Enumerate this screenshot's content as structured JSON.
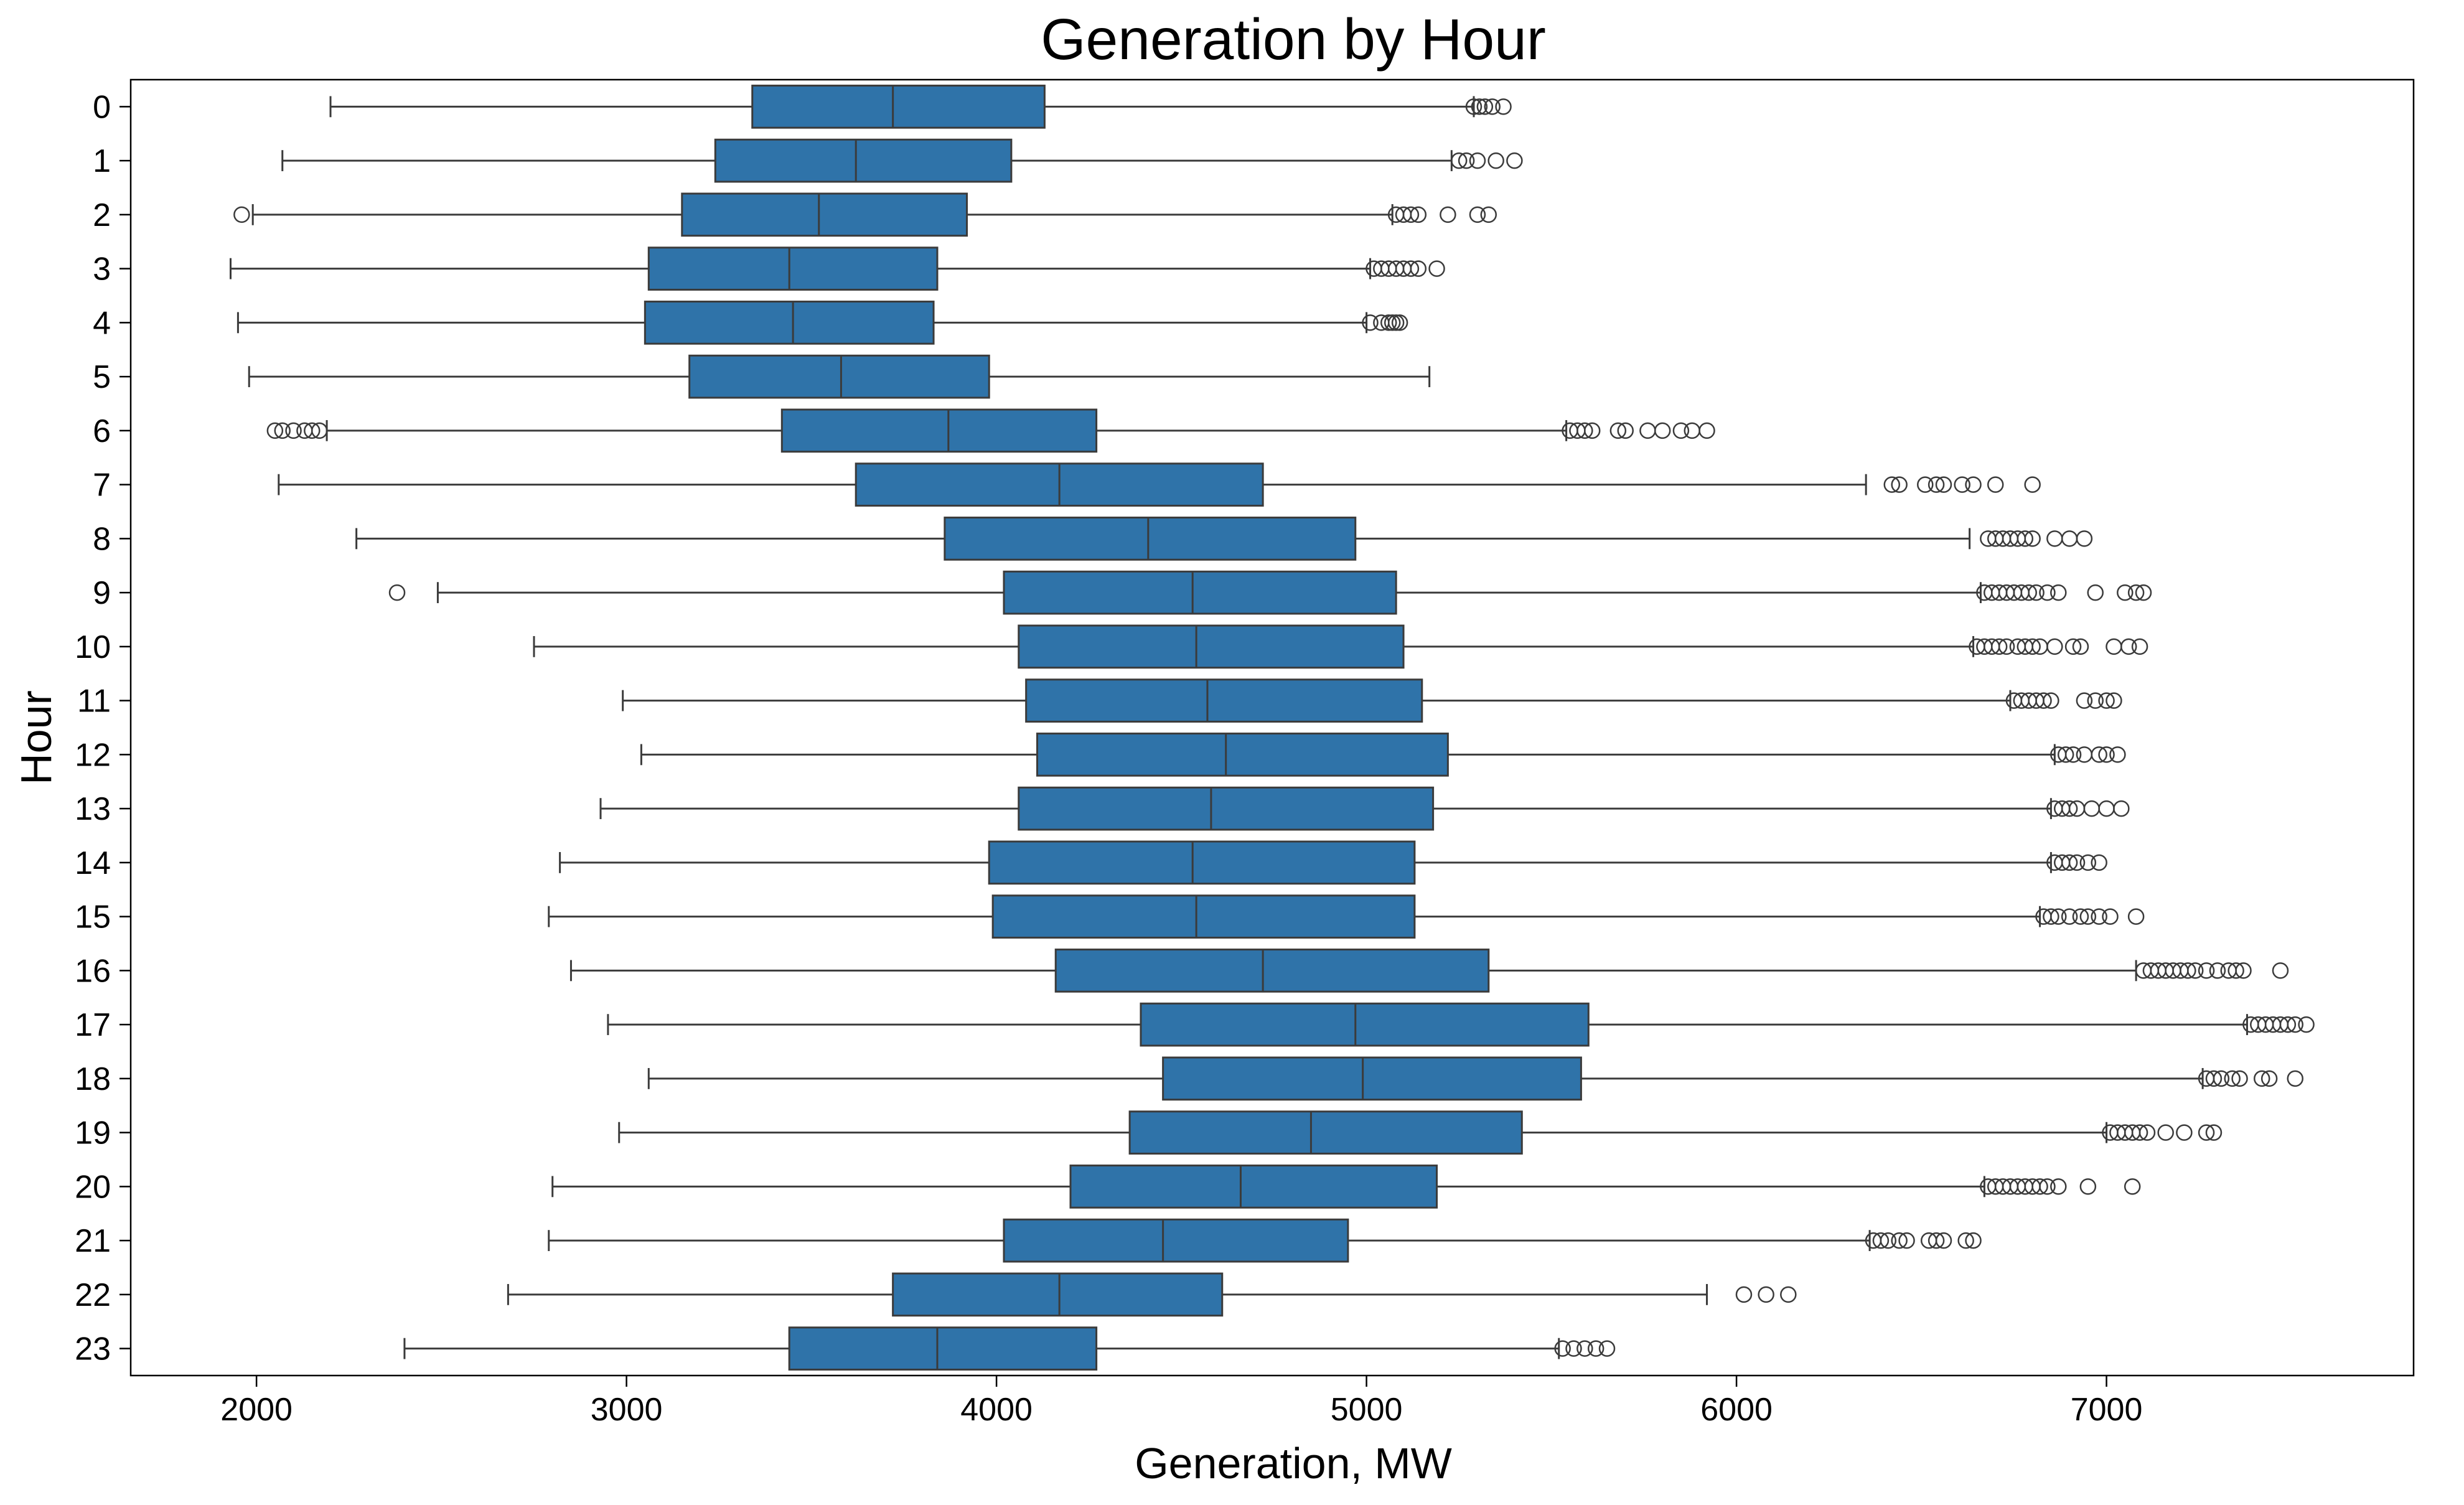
{
  "chart_data": {
    "type": "boxplot",
    "orientation": "horizontal",
    "title": "Generation by Hour",
    "xlabel": "Generation, MW",
    "ylabel": "Hour",
    "xlim": [
      1660,
      7830
    ],
    "xticks": [
      2000,
      3000,
      4000,
      5000,
      6000,
      7000
    ],
    "grid": false,
    "colors": {
      "box_fill": "#2f73a9",
      "line": "#3b3b3b",
      "flier": "#3b3b3b"
    },
    "series": [
      {
        "category": "0",
        "whisker_low": 2200,
        "q1": 3340,
        "median": 3720,
        "q3": 4130,
        "whisker_high": 5290,
        "fliers": [
          5290,
          5305,
          5320,
          5340,
          5370
        ]
      },
      {
        "category": "1",
        "whisker_low": 2070,
        "q1": 3240,
        "median": 3620,
        "q3": 4040,
        "whisker_high": 5230,
        "fliers": [
          5250,
          5270,
          5300,
          5350,
          5400
        ]
      },
      {
        "category": "2",
        "whisker_low": 1990,
        "q1": 3150,
        "median": 3520,
        "q3": 3920,
        "whisker_high": 5070,
        "fliers": [
          1960,
          5080,
          5100,
          5120,
          5140,
          5220,
          5300,
          5330
        ]
      },
      {
        "category": "3",
        "whisker_low": 1930,
        "q1": 3060,
        "median": 3440,
        "q3": 3840,
        "whisker_high": 5010,
        "fliers": [
          5020,
          5040,
          5060,
          5080,
          5100,
          5120,
          5140,
          5190
        ]
      },
      {
        "category": "4",
        "whisker_low": 1950,
        "q1": 3050,
        "median": 3450,
        "q3": 3830,
        "whisker_high": 5000,
        "fliers": [
          5010,
          5040,
          5060,
          5070,
          5080,
          5090
        ]
      },
      {
        "category": "5",
        "whisker_low": 1980,
        "q1": 3170,
        "median": 3580,
        "q3": 3980,
        "whisker_high": 5170,
        "fliers": []
      },
      {
        "category": "6",
        "whisker_low": 2190,
        "q1": 3420,
        "median": 3870,
        "q3": 4270,
        "whisker_high": 5540,
        "fliers": [
          2050,
          2070,
          2100,
          2130,
          2150,
          2170,
          5550,
          5570,
          5590,
          5610,
          5680,
          5700,
          5760,
          5800,
          5850,
          5880,
          5920
        ]
      },
      {
        "category": "7",
        "whisker_low": 2060,
        "q1": 3620,
        "median": 4170,
        "q3": 4720,
        "whisker_high": 6350,
        "fliers": [
          6420,
          6440,
          6510,
          6540,
          6560,
          6610,
          6640,
          6700,
          6800
        ]
      },
      {
        "category": "8",
        "whisker_low": 2270,
        "q1": 3860,
        "median": 4410,
        "q3": 4970,
        "whisker_high": 6630,
        "fliers": [
          6680,
          6700,
          6720,
          6740,
          6760,
          6780,
          6800,
          6860,
          6900,
          6940
        ]
      },
      {
        "category": "9",
        "whisker_low": 2490,
        "q1": 4020,
        "median": 4530,
        "q3": 5080,
        "whisker_high": 6660,
        "fliers": [
          2380,
          6670,
          6690,
          6710,
          6730,
          6750,
          6770,
          6790,
          6810,
          6840,
          6870,
          6970,
          7050,
          7080,
          7100
        ]
      },
      {
        "category": "10",
        "whisker_low": 2750,
        "q1": 4060,
        "median": 4540,
        "q3": 5100,
        "whisker_high": 6640,
        "fliers": [
          6650,
          6670,
          6690,
          6710,
          6730,
          6760,
          6780,
          6800,
          6820,
          6860,
          6910,
          6930,
          7020,
          7060,
          7090
        ]
      },
      {
        "category": "11",
        "whisker_low": 2990,
        "q1": 4080,
        "median": 4570,
        "q3": 5150,
        "whisker_high": 6740,
        "fliers": [
          6750,
          6770,
          6790,
          6810,
          6830,
          6850,
          6940,
          6970,
          7000,
          7020
        ]
      },
      {
        "category": "12",
        "whisker_low": 3040,
        "q1": 4110,
        "median": 4620,
        "q3": 5220,
        "whisker_high": 6860,
        "fliers": [
          6870,
          6890,
          6910,
          6940,
          6980,
          7000,
          7030
        ]
      },
      {
        "category": "13",
        "whisker_low": 2930,
        "q1": 4060,
        "median": 4580,
        "q3": 5180,
        "whisker_high": 6850,
        "fliers": [
          6860,
          6880,
          6900,
          6920,
          6960,
          7000,
          7040
        ]
      },
      {
        "category": "14",
        "whisker_low": 2820,
        "q1": 3980,
        "median": 4530,
        "q3": 5130,
        "whisker_high": 6850,
        "fliers": [
          6860,
          6880,
          6900,
          6920,
          6950,
          6980
        ]
      },
      {
        "category": "15",
        "whisker_low": 2790,
        "q1": 3990,
        "median": 4540,
        "q3": 5130,
        "whisker_high": 6820,
        "fliers": [
          6830,
          6850,
          6870,
          6900,
          6930,
          6950,
          6980,
          7010,
          7080
        ]
      },
      {
        "category": "16",
        "whisker_low": 2850,
        "q1": 4160,
        "median": 4720,
        "q3": 5330,
        "whisker_high": 7080,
        "fliers": [
          7100,
          7120,
          7140,
          7160,
          7180,
          7200,
          7220,
          7240,
          7270,
          7300,
          7330,
          7350,
          7370,
          7470
        ]
      },
      {
        "category": "17",
        "whisker_low": 2950,
        "q1": 4390,
        "median": 4970,
        "q3": 5600,
        "whisker_high": 7380,
        "fliers": [
          7390,
          7410,
          7430,
          7450,
          7470,
          7490,
          7510,
          7540
        ]
      },
      {
        "category": "18",
        "whisker_low": 3060,
        "q1": 4450,
        "median": 4990,
        "q3": 5580,
        "whisker_high": 7260,
        "fliers": [
          7270,
          7290,
          7310,
          7340,
          7360,
          7420,
          7440,
          7510
        ]
      },
      {
        "category": "19",
        "whisker_low": 2980,
        "q1": 4360,
        "median": 4850,
        "q3": 5420,
        "whisker_high": 7000,
        "fliers": [
          7010,
          7030,
          7050,
          7070,
          7090,
          7110,
          7160,
          7210,
          7270,
          7290
        ]
      },
      {
        "category": "20",
        "whisker_low": 2800,
        "q1": 4200,
        "median": 4660,
        "q3": 5190,
        "whisker_high": 6670,
        "fliers": [
          6680,
          6700,
          6720,
          6740,
          6760,
          6780,
          6800,
          6820,
          6840,
          6870,
          6950,
          7070
        ]
      },
      {
        "category": "21",
        "whisker_low": 2790,
        "q1": 4020,
        "median": 4450,
        "q3": 4950,
        "whisker_high": 6360,
        "fliers": [
          6370,
          6390,
          6410,
          6440,
          6460,
          6520,
          6540,
          6560,
          6620,
          6640
        ]
      },
      {
        "category": "22",
        "whisker_low": 2680,
        "q1": 3720,
        "median": 4170,
        "q3": 4610,
        "whisker_high": 5920,
        "fliers": [
          6020,
          6080,
          6140
        ]
      },
      {
        "category": "23",
        "whisker_low": 2400,
        "q1": 3440,
        "median": 3840,
        "q3": 4270,
        "whisker_high": 5520,
        "fliers": [
          5530,
          5560,
          5590,
          5620,
          5650
        ]
      }
    ]
  }
}
